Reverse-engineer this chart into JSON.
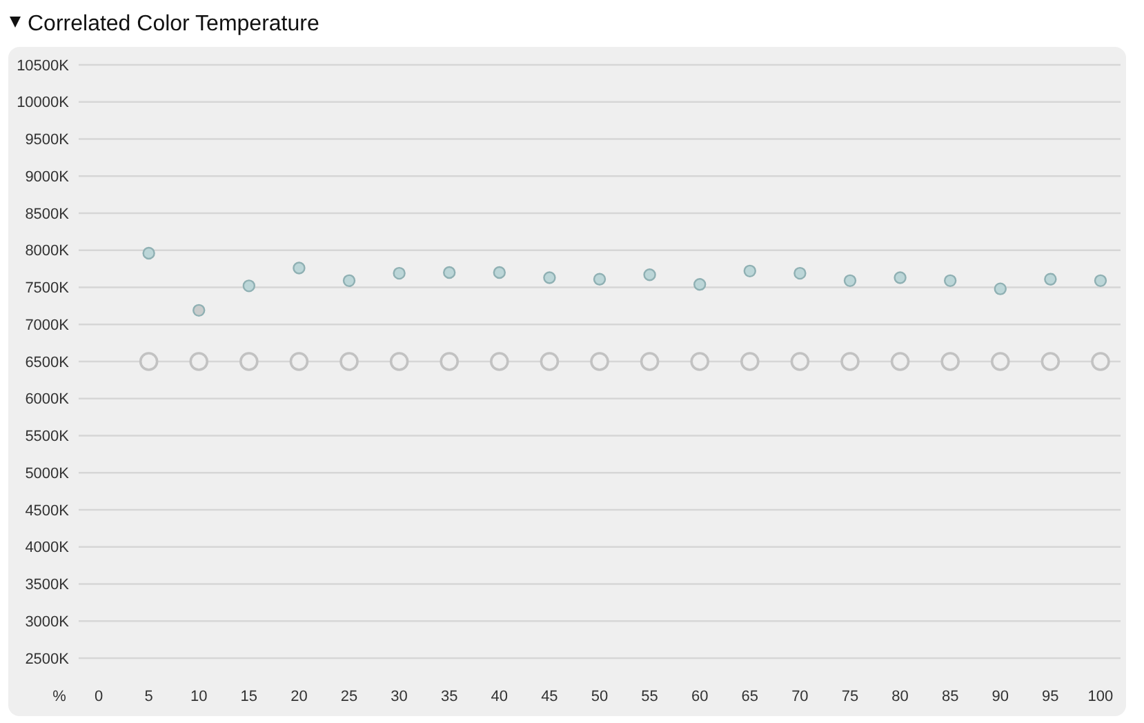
{
  "chart_data": {
    "type": "scatter",
    "title": "Correlated Color Temperature",
    "xlabel": "%",
    "x": [
      5,
      10,
      15,
      20,
      25,
      30,
      35,
      40,
      45,
      50,
      55,
      60,
      65,
      70,
      75,
      80,
      85,
      90,
      95,
      100
    ],
    "series": [
      {
        "colors": [
          "#bcd6d8",
          "#c9cccc",
          "#bcd6d8",
          "#bcd6d8",
          "#bcd6d8",
          "#bcd6d8",
          "#bcd6d8",
          "#bcd6d8",
          "#bcd6d8",
          "#bcd6d8",
          "#bcd6d8",
          "#bcd6d8",
          "#bcd6d8",
          "#bcd6d8",
          "#bcd6d8",
          "#bcd6d8",
          "#bcd6d8",
          "#bcd6d8",
          "#bcd6d8",
          "#bcd6d8"
        ],
        "values": [
          7960,
          7190,
          7520,
          7760,
          7590,
          7690,
          7700,
          7700,
          7630,
          7610,
          7670,
          7540,
          7720,
          7690,
          7590,
          7630,
          7590,
          7480,
          7610,
          7590
        ]
      },
      {
        "color": "#c2c2c2",
        "values": [
          6500,
          6500,
          6500,
          6500,
          6500,
          6500,
          6500,
          6500,
          6500,
          6500,
          6500,
          6500,
          6500,
          6500,
          6500,
          6500,
          6500,
          6500,
          6500,
          6500
        ]
      }
    ],
    "xlim": [
      -2,
      102
    ],
    "xticks": [
      0,
      5,
      10,
      15,
      20,
      25,
      30,
      35,
      40,
      45,
      50,
      55,
      60,
      65,
      70,
      75,
      80,
      85,
      90,
      95,
      100
    ],
    "ylim": [
      2500,
      10500
    ],
    "yticks": [
      {
        "value": 2500,
        "label": "2500K"
      },
      {
        "value": 3000,
        "label": "3000K"
      },
      {
        "value": 3500,
        "label": "3500K"
      },
      {
        "value": 4000,
        "label": "4000K"
      },
      {
        "value": 4500,
        "label": "4500K"
      },
      {
        "value": 5000,
        "label": "5000K"
      },
      {
        "value": 5500,
        "label": "5500K"
      },
      {
        "value": 6000,
        "label": "6000K"
      },
      {
        "value": 6500,
        "label": "6500K"
      },
      {
        "value": 7000,
        "label": "7000K"
      },
      {
        "value": 7500,
        "label": "7500K"
      },
      {
        "value": 8000,
        "label": "8000K"
      },
      {
        "value": 8500,
        "label": "8500K"
      },
      {
        "value": 9000,
        "label": "9000K"
      },
      {
        "value": 9500,
        "label": "9500K"
      },
      {
        "value": 10000,
        "label": "10000K"
      },
      {
        "value": 10500,
        "label": "10500K"
      }
    ],
    "grid": "y",
    "marker": "circle"
  }
}
